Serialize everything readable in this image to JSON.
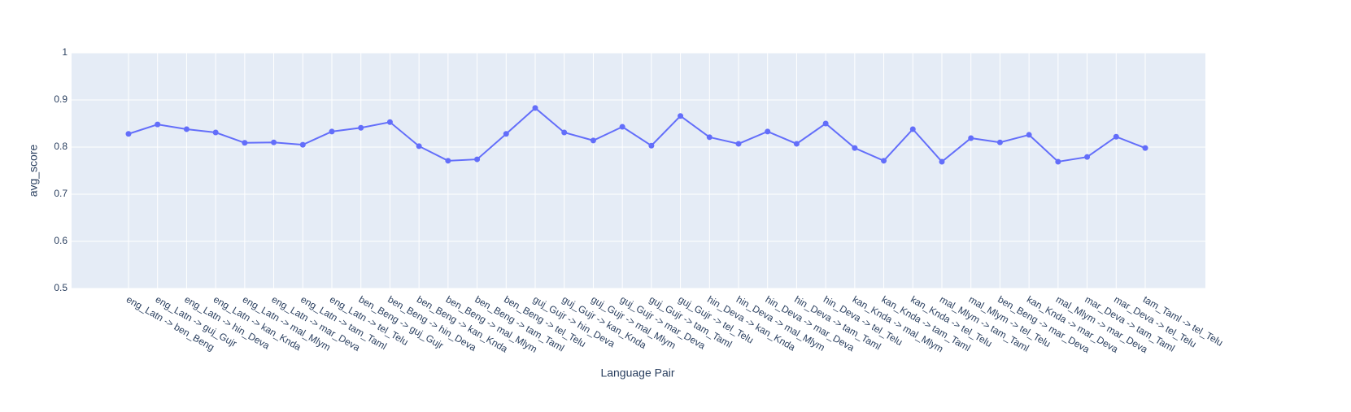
{
  "chart_data": {
    "type": "line",
    "x_label": "Language Pair",
    "y_label": "avg_score",
    "categories": [
      "eng_Latn -> ben_Beng",
      "eng_Latn -> guj_Gujr",
      "eng_Latn -> hin_Deva",
      "eng_Latn -> kan_Knda",
      "eng_Latn -> mal_Mlym",
      "eng_Latn -> mar_Deva",
      "eng_Latn -> tam_Taml",
      "eng_Latn -> tel_Telu",
      "ben_Beng -> guj_Gujr",
      "ben_Beng -> hin_Deva",
      "ben_Beng -> kan_Knda",
      "ben_Beng -> mal_Mlym",
      "ben_Beng -> tam_Taml",
      "ben_Beng -> tel_Telu",
      "guj_Gujr -> hin_Deva",
      "guj_Gujr -> kan_Knda",
      "guj_Gujr -> mal_Mlym",
      "guj_Gujr -> mar_Deva",
      "guj_Gujr -> tam_Taml",
      "guj_Gujr -> tel_Telu",
      "hin_Deva -> kan_Knda",
      "hin_Deva -> mal_Mlym",
      "hin_Deva -> mar_Deva",
      "hin_Deva -> tam_Taml",
      "hin_Deva -> tel_Telu",
      "kan_Knda -> mal_Mlym",
      "kan_Knda -> tam_Taml",
      "kan_Knda -> tel_Telu",
      "mal_Mlym -> tam_Taml",
      "mal_Mlym -> tel_Telu",
      "ben_Beng -> mar_Deva",
      "kan_Knda -> mar_Deva",
      "mal_Mlym -> mar_Deva",
      "mar_Deva -> tam_Taml",
      "mar_Deva -> tel_Telu",
      "tam_Taml -> tel_Telu"
    ],
    "values": [
      0.828,
      0.848,
      0.838,
      0.831,
      0.809,
      0.81,
      0.805,
      0.833,
      0.841,
      0.853,
      0.802,
      0.771,
      0.774,
      0.828,
      0.883,
      0.831,
      0.814,
      0.843,
      0.803,
      0.866,
      0.821,
      0.807,
      0.833,
      0.807,
      0.85,
      0.798,
      0.771,
      0.838,
      0.769,
      0.819,
      0.81,
      0.826,
      0.769,
      0.779,
      0.822,
      0.798
    ],
    "color": "#636efa",
    "ylim": [
      0.5,
      1
    ],
    "yticks": [
      0.5,
      0.6,
      0.7,
      0.8,
      0.9,
      1
    ],
    "grid": true
  }
}
